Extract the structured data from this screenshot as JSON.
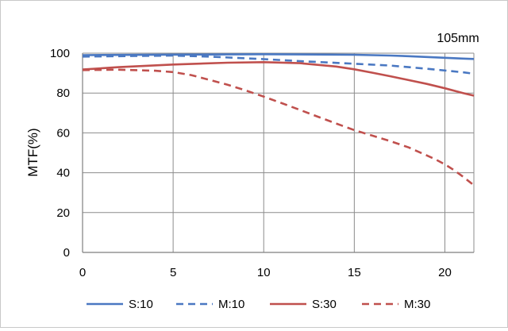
{
  "chart_data": {
    "type": "line",
    "title": "",
    "annotation": "105mm",
    "xlabel": "",
    "ylabel": "MTF(%)",
    "xlim": [
      0,
      21.6
    ],
    "ylim": [
      0,
      100
    ],
    "xticks": [
      0,
      5,
      10,
      15,
      20
    ],
    "yticks": [
      0,
      20,
      40,
      60,
      80,
      100
    ],
    "grid": true,
    "legend_position": "bottom",
    "series": [
      {
        "name": "S:10",
        "color": "#4a78c2",
        "dash": "solid",
        "x": [
          0,
          5,
          10,
          15,
          17,
          18,
          19,
          20,
          21,
          21.6
        ],
        "y": [
          99,
          99.3,
          99.5,
          99.2,
          98.8,
          98.5,
          98.1,
          97.7,
          97.3,
          97.1
        ]
      },
      {
        "name": "M:10",
        "color": "#4a78c2",
        "dash": "dashed",
        "x": [
          0,
          3,
          5,
          7,
          10,
          12,
          15,
          17,
          18,
          19,
          20,
          21,
          21.6
        ],
        "y": [
          98.3,
          98.6,
          98.8,
          98.3,
          97,
          96,
          94.7,
          93.8,
          93,
          92.2,
          91.3,
          90.4,
          89.7
        ]
      },
      {
        "name": "S:30",
        "color": "#c0504d",
        "dash": "solid",
        "x": [
          0,
          2,
          5,
          8,
          10,
          12,
          14,
          15,
          16,
          17,
          18,
          19,
          20,
          21,
          21.6
        ],
        "y": [
          91.8,
          93,
          94.3,
          95.2,
          95.5,
          95,
          93.3,
          91.9,
          90.2,
          88.4,
          86.5,
          84.6,
          82.4,
          80,
          78.7
        ]
      },
      {
        "name": "M:30",
        "color": "#c0504d",
        "dash": "dashed",
        "x": [
          0,
          2,
          4,
          5,
          6,
          7,
          8,
          9,
          10,
          11,
          12,
          13,
          14,
          15,
          16,
          17,
          18,
          19,
          19.5,
          20,
          20.5,
          21,
          21.6
        ],
        "y": [
          91.5,
          91.7,
          91.2,
          90.5,
          89,
          86.6,
          84.2,
          81.3,
          78.2,
          74.9,
          71.5,
          68.1,
          64.7,
          61.4,
          58.6,
          55.8,
          52.7,
          48.7,
          46.6,
          44.2,
          41.3,
          38,
          33.7
        ]
      }
    ]
  }
}
